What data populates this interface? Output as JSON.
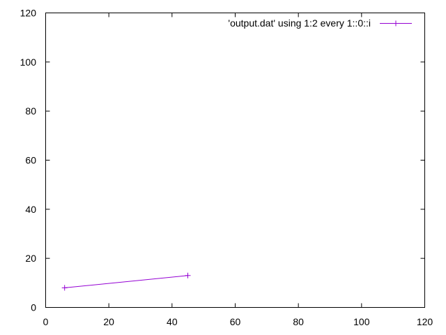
{
  "chart_data": {
    "type": "line",
    "title": "",
    "xlabel": "",
    "ylabel": "",
    "xlim": [
      0,
      120
    ],
    "ylim": [
      0,
      120
    ],
    "x_ticks": [
      0,
      20,
      40,
      60,
      80,
      100,
      120
    ],
    "y_ticks": [
      0,
      20,
      40,
      60,
      80,
      100,
      120
    ],
    "grid": false,
    "legend_position": "top-right",
    "series": [
      {
        "name": "'output.dat' using 1:2 every 1::0::i",
        "color": "#9400d3",
        "marker": "plus",
        "points": [
          {
            "x": 6,
            "y": 8
          },
          {
            "x": 45,
            "y": 13
          }
        ]
      }
    ]
  }
}
